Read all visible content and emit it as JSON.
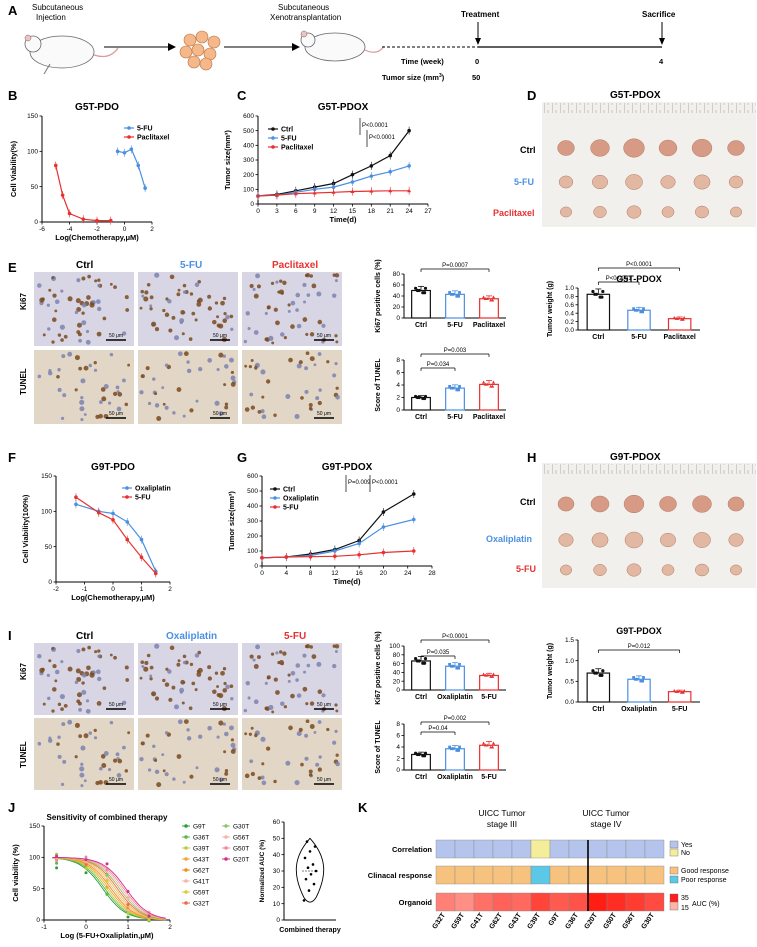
{
  "panel_letters": [
    "A",
    "B",
    "C",
    "D",
    "E",
    "F",
    "G",
    "H",
    "I",
    "J",
    "K"
  ],
  "colors": {
    "ctrl": "#111111",
    "fu5": "#4a90e2",
    "paclitaxel": "#e83030",
    "oxaliplatin": "#4a90e2"
  },
  "panelA": {
    "step1": "Subcutaneous",
    "step1b": "Injection",
    "step2": "Subcutaneous",
    "step2b": "Xenotransplantation",
    "treatment": "Treatment",
    "sacrifice": "Sacrifice",
    "time_label": "Time (week)",
    "tumor_label": "Tumor size (mm",
    "tumor_sup": "3",
    "time_start": "0",
    "time_end": "4",
    "tumor_start": "50"
  },
  "chart_data": [
    {
      "id": "B",
      "type": "line",
      "title": "G5T-PDO",
      "xlabel": "Log(Chemotherapy,μM)",
      "ylabel": "Cell Viability(%)",
      "xlim": [
        -6,
        2
      ],
      "ylim": [
        0,
        150
      ],
      "xticks": [
        "-6",
        "-4",
        "-2",
        "0",
        "2"
      ],
      "yticks": [
        "0",
        "50",
        "100",
        "150"
      ],
      "legend": "top-right",
      "series": [
        {
          "name": "5-FU",
          "color": "#4a90e2",
          "x": [
            -0.5,
            0.0,
            0.5,
            1.0,
            1.5
          ],
          "y": [
            100,
            98,
            103,
            80,
            48
          ]
        },
        {
          "name": "Paclitaxel",
          "color": "#e83030",
          "x": [
            -5.0,
            -4.5,
            -4.0,
            -3.0,
            -2.0,
            -1.0
          ],
          "y": [
            80,
            38,
            12,
            4,
            2,
            2
          ]
        }
      ]
    },
    {
      "id": "C",
      "type": "line",
      "title": "G5T-PDOX",
      "xlabel": "Time(d)",
      "ylabel": "Tumor size(mm³)",
      "xlim": [
        0,
        27
      ],
      "ylim": [
        0,
        600
      ],
      "xticks": [
        "0",
        "3",
        "6",
        "9",
        "12",
        "15",
        "18",
        "21",
        "24",
        "27"
      ],
      "yticks": [
        "0",
        "100",
        "200",
        "300",
        "400",
        "500",
        "600"
      ],
      "legend": "top-left",
      "pvalues": [
        "P<0.0001",
        "P<0.0001"
      ],
      "series": [
        {
          "name": "Ctrl",
          "color": "#111111",
          "x": [
            0,
            3,
            6,
            9,
            12,
            15,
            18,
            21,
            24
          ],
          "y": [
            55,
            65,
            90,
            115,
            140,
            200,
            260,
            330,
            500
          ]
        },
        {
          "name": "5-FU",
          "color": "#4a90e2",
          "x": [
            0,
            3,
            6,
            9,
            12,
            15,
            18,
            21,
            24
          ],
          "y": [
            55,
            60,
            80,
            100,
            115,
            150,
            190,
            220,
            260
          ]
        },
        {
          "name": "Paclitaxel",
          "color": "#e83030",
          "x": [
            0,
            3,
            6,
            9,
            12,
            15,
            18,
            21,
            24
          ],
          "y": [
            55,
            60,
            70,
            75,
            80,
            85,
            88,
            90,
            90
          ]
        }
      ]
    },
    {
      "id": "D-weight",
      "type": "bar",
      "title": "G5T-PDOX",
      "ylabel": "Tumor weight (g)",
      "ylim": [
        0,
        1.0
      ],
      "yticks": [
        "0.0",
        "0.2",
        "0.4",
        "0.6",
        "0.8",
        "1.0"
      ],
      "categories": [
        "Ctrl",
        "5-FU",
        "Paclitaxel"
      ],
      "values": [
        0.85,
        0.47,
        0.27
      ],
      "colors": [
        "#111111",
        "#4a90e2",
        "#e83030"
      ],
      "pvalues": [
        "P<0.0001",
        "P<0.0001"
      ]
    },
    {
      "id": "E-ki67",
      "type": "bar",
      "ylabel": "Ki67 positive cells (%)",
      "ylim": [
        0,
        80
      ],
      "yticks": [
        "0",
        "20",
        "40",
        "60",
        "80"
      ],
      "categories": [
        "Ctrl",
        "5-FU",
        "Paclitaxel"
      ],
      "values": [
        50,
        43,
        35
      ],
      "colors": [
        "#111111",
        "#4a90e2",
        "#e83030"
      ],
      "pvalues": [
        "P=0.0007"
      ]
    },
    {
      "id": "E-tunel",
      "type": "bar",
      "ylabel": "Score of TUNEL",
      "ylim": [
        0,
        8
      ],
      "yticks": [
        "0",
        "2",
        "4",
        "6",
        "8"
      ],
      "categories": [
        "Ctrl",
        "5-FU",
        "Paclitaxel"
      ],
      "values": [
        2.0,
        3.5,
        4.1
      ],
      "colors": [
        "#111111",
        "#4a90e2",
        "#e83030"
      ],
      "pvalues": [
        "P=0.034",
        "P=0.003"
      ]
    },
    {
      "id": "F",
      "type": "line",
      "title": "G9T-PDO",
      "xlabel": "Log(Chemotherapy,μM)",
      "ylabel": "Cell Viability(100%)",
      "xlim": [
        -2,
        2
      ],
      "ylim": [
        0,
        150
      ],
      "xticks": [
        "-2",
        "-1",
        "0",
        "1",
        "2"
      ],
      "yticks": [
        "0",
        "50",
        "100",
        "150"
      ],
      "legend": "top-right",
      "series": [
        {
          "name": "Oxaliplatin",
          "color": "#4a90e2",
          "x": [
            -1.3,
            -0.5,
            0.0,
            0.5,
            1.0,
            1.5
          ],
          "y": [
            110,
            100,
            97,
            85,
            60,
            15
          ]
        },
        {
          "name": "5-FU",
          "color": "#e83030",
          "x": [
            -1.3,
            -0.5,
            0.0,
            0.5,
            1.0,
            1.5
          ],
          "y": [
            120,
            98,
            88,
            60,
            35,
            12
          ]
        }
      ]
    },
    {
      "id": "G",
      "type": "line",
      "title": "G9T-PDOX",
      "xlabel": "Time(d)",
      "ylabel": "Tumor size(mm³)",
      "xlim": [
        0,
        28
      ],
      "ylim": [
        0,
        600
      ],
      "xticks": [
        "0",
        "4",
        "8",
        "12",
        "16",
        "20",
        "24",
        "28"
      ],
      "yticks": [
        "0",
        "100",
        "200",
        "300",
        "400",
        "500",
        "600"
      ],
      "legend": "top-left",
      "pvalues": [
        "P=0.009",
        "P<0.0001"
      ],
      "series": [
        {
          "name": "Ctrl",
          "color": "#111111",
          "x": [
            0,
            4,
            8,
            12,
            16,
            20,
            25
          ],
          "y": [
            55,
            60,
            80,
            110,
            170,
            360,
            480
          ]
        },
        {
          "name": "Oxaliplatin",
          "color": "#4a90e2",
          "x": [
            0,
            4,
            8,
            12,
            16,
            20,
            25
          ],
          "y": [
            55,
            60,
            70,
            100,
            150,
            260,
            310
          ]
        },
        {
          "name": "5-FU",
          "color": "#e83030",
          "x": [
            0,
            4,
            8,
            12,
            16,
            20,
            25
          ],
          "y": [
            55,
            60,
            62,
            65,
            75,
            90,
            100
          ]
        }
      ]
    },
    {
      "id": "H-weight",
      "type": "bar",
      "title": "G9T-PDOX",
      "ylabel": "Tumor weight (g)",
      "ylim": [
        0,
        1.5
      ],
      "yticks": [
        "0.0",
        "0.5",
        "1.0",
        "1.5"
      ],
      "categories": [
        "Ctrl",
        "Oxaliplatin",
        "5-FU"
      ],
      "values": [
        0.7,
        0.55,
        0.25
      ],
      "colors": [
        "#111111",
        "#4a90e2",
        "#e83030"
      ],
      "pvalues": [
        "P=0.012"
      ]
    },
    {
      "id": "I-ki67",
      "type": "bar",
      "ylabel": "Ki67 positive cells (%)",
      "ylim": [
        0,
        100
      ],
      "yticks": [
        "0",
        "20",
        "40",
        "60",
        "80",
        "100"
      ],
      "categories": [
        "Ctrl",
        "Oxaliplatin",
        "5-FU"
      ],
      "values": [
        66,
        54,
        33
      ],
      "colors": [
        "#111111",
        "#4a90e2",
        "#e83030"
      ],
      "pvalues": [
        "P=0.035",
        "P<0.0001"
      ]
    },
    {
      "id": "I-tunel",
      "type": "bar",
      "ylabel": "Score of TUNEL",
      "ylim": [
        0,
        8
      ],
      "yticks": [
        "0",
        "2",
        "4",
        "6",
        "8"
      ],
      "categories": [
        "Ctrl",
        "Oxaliplatin",
        "5-FU"
      ],
      "values": [
        2.7,
        3.7,
        4.3
      ],
      "colors": [
        "#111111",
        "#4a90e2",
        "#e83030"
      ],
      "pvalues": [
        "P=0.04",
        "P=0.002"
      ]
    },
    {
      "id": "J",
      "type": "line",
      "title": "Sensitivity of combined therapy",
      "xlabel": "Log (5-FU+Oxaliplatin,μM)",
      "ylabel": "Cell viability (%)",
      "xlim": [
        -1,
        2
      ],
      "ylim": [
        0,
        150
      ],
      "xticks": [
        "-1",
        "0",
        "1",
        "2"
      ],
      "yticks": [
        "0",
        "50",
        "100",
        "150"
      ],
      "legend": "right",
      "series": [
        {
          "name": "G9T",
          "color": "#2e9e3a"
        },
        {
          "name": "G36T",
          "color": "#56b84a"
        },
        {
          "name": "G39T",
          "color": "#b6cf3a"
        },
        {
          "name": "G43T",
          "color": "#f2a62a"
        },
        {
          "name": "G62T",
          "color": "#f08c1a"
        },
        {
          "name": "G41T",
          "color": "#f7b5a0"
        },
        {
          "name": "G59T",
          "color": "#e0c83a"
        },
        {
          "name": "G32T",
          "color": "#f06a4a"
        },
        {
          "name": "G30T",
          "color": "#8cc46a"
        },
        {
          "name": "G56T",
          "color": "#f4b3a8"
        },
        {
          "name": "G50T",
          "color": "#f08aa0"
        },
        {
          "name": "G20T",
          "color": "#d42f8a"
        }
      ]
    },
    {
      "id": "J-violin",
      "type": "scatter",
      "xlabel": "Combined therapy",
      "ylabel": "Normalized AUC (%)",
      "ylim": [
        0,
        60
      ],
      "yticks": [
        "0",
        "10",
        "20",
        "30",
        "40",
        "50",
        "60"
      ],
      "values": [
        12,
        18,
        22,
        25,
        28,
        30,
        32,
        34,
        38,
        42,
        45,
        48
      ]
    },
    {
      "id": "K",
      "type": "heatmap",
      "columns": [
        "G32T",
        "G59T",
        "G41T",
        "G62T",
        "G43T",
        "G39T",
        "G9T",
        "G36T",
        "G20T",
        "G50T",
        "G56T",
        "G30T"
      ],
      "rows": [
        "Correlation",
        "Clinacal response",
        "Organoid"
      ],
      "stage_labels": [
        "UICC Tumor\nstage III",
        "UICC Tumor\nstage IV"
      ],
      "correlation": [
        "Yes",
        "Yes",
        "Yes",
        "Yes",
        "Yes",
        "No",
        "Yes",
        "Yes",
        "Yes",
        "Yes",
        "Yes",
        "Yes"
      ],
      "response": [
        "Good",
        "Good",
        "Good",
        "Good",
        "Good",
        "Poor",
        "Good",
        "Good",
        "Good",
        "Good",
        "Good",
        "Good"
      ],
      "auc": [
        22,
        20,
        24,
        26,
        25,
        30,
        27,
        28,
        35,
        33,
        31,
        29
      ],
      "legend": [
        "Yes",
        "No",
        "Good response",
        "Poor response",
        "35",
        "15",
        "AUC (%)"
      ]
    }
  ],
  "panelD_rows": [
    "Ctrl",
    "5-FU",
    "Paclitaxel"
  ],
  "panelE_cols": [
    "Ctrl",
    "5-FU",
    "Paclitaxel"
  ],
  "panelH_rows": [
    "Ctrl",
    "Oxaliplatin",
    "5-FU"
  ],
  "panelI_cols": [
    "Ctrl",
    "Oxaliplatin",
    "5-FU"
  ],
  "stain_rows": [
    "Ki67",
    "TUNEL"
  ],
  "scale_bar": "50 μm",
  "panelD_title": "G5T-PDOX",
  "panelH_title": "G9T-PDOX"
}
